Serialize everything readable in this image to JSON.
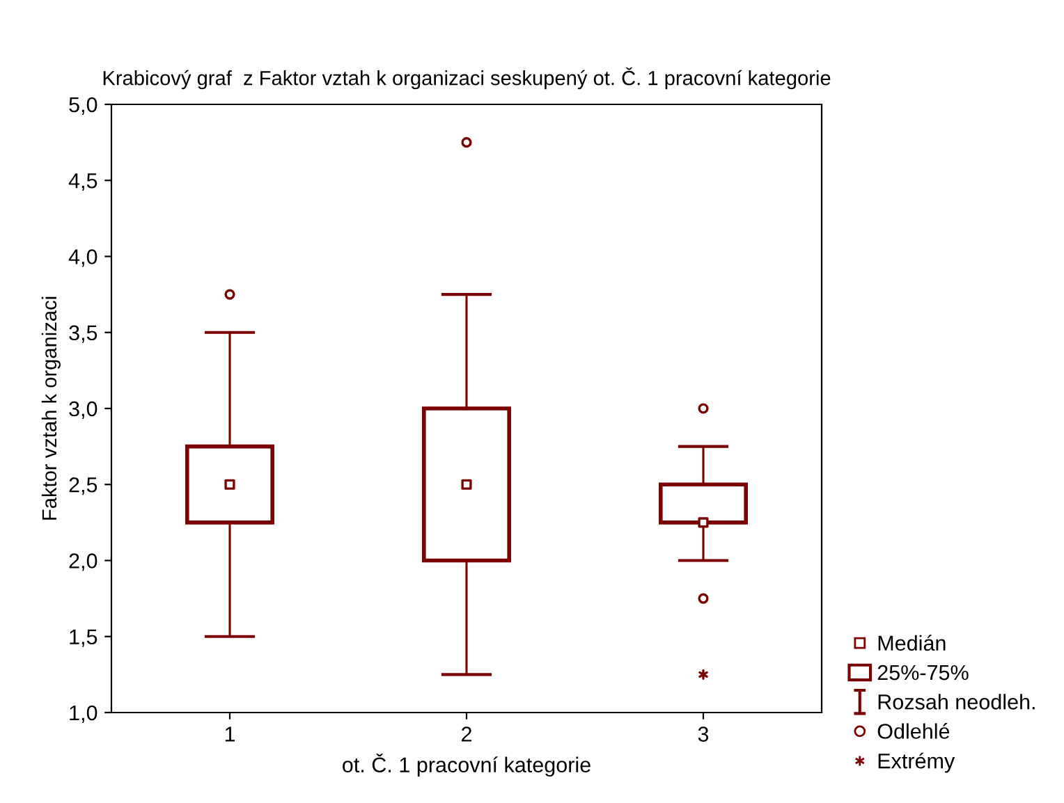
{
  "chart_data": {
    "type": "scatter",
    "title": "Krabicový graf  z Faktor vztah k organizaci seskupený ot. Č. 1 pracovní kategorie",
    "xlabel": "ot. Č. 1 pracovní kategorie",
    "ylabel": "Faktor vztah k organizaci",
    "categories": [
      "1",
      "2",
      "3"
    ],
    "ylim": [
      1.0,
      5.0
    ],
    "yticks": [
      {
        "value": 1.0,
        "label": "1,0"
      },
      {
        "value": 1.5,
        "label": "1,5"
      },
      {
        "value": 2.0,
        "label": "2,0"
      },
      {
        "value": 2.5,
        "label": "2,5"
      },
      {
        "value": 3.0,
        "label": "3,0"
      },
      {
        "value": 3.5,
        "label": "3,5"
      },
      {
        "value": 4.0,
        "label": "4,0"
      },
      {
        "value": 4.5,
        "label": "4,5"
      },
      {
        "value": 5.0,
        "label": "5,0"
      }
    ],
    "grid": false,
    "legend": "bottom right",
    "series": [
      {
        "name": "Medián",
        "color": "#7b0000",
        "marker": "square",
        "values": [
          2.5,
          2.5,
          2.25
        ]
      },
      {
        "type": "bar",
        "name": "25%-75%",
        "color": "#7b0000",
        "base": [
          2.25,
          2.0,
          2.25
        ],
        "values": [
          0.5,
          1.0,
          0.25
        ]
      },
      {
        "type": "bar",
        "name": "Rozsah neodleh.",
        "color": "#7b0000",
        "line_style": "solid",
        "base": [
          1.5,
          1.25,
          2.0
        ],
        "values": [
          2.0,
          2.5,
          0.75
        ]
      },
      {
        "name": "Odlehlé",
        "color": "#7b0000",
        "marker": "circle",
        "x": [
          "1",
          "2",
          "3",
          "3"
        ],
        "values": [
          3.75,
          4.75,
          3.0,
          1.75
        ]
      },
      {
        "name": "Extrémy",
        "color": "#7b0000",
        "marker": "cross",
        "x": [
          "3"
        ],
        "values": [
          1.25
        ]
      }
    ]
  }
}
